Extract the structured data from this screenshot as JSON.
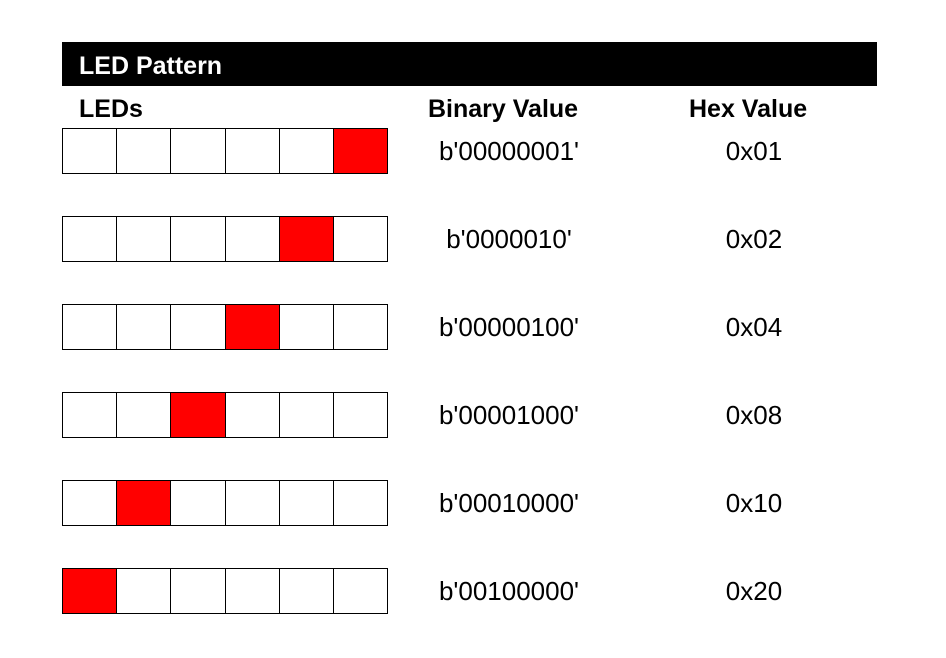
{
  "title": "LED Pattern",
  "headers": {
    "leds": "LEDs",
    "binary": "Binary Value",
    "hex": "Hex Value"
  },
  "colors": {
    "led_on": "#ff0000",
    "led_off": "#ffffff",
    "banner": "#000000"
  },
  "led_count": 6,
  "rows": [
    {
      "lit_index": 5,
      "binary": "b'00000001'",
      "hex": "0x01"
    },
    {
      "lit_index": 4,
      "binary": "b'0000010'",
      "hex": "0x02"
    },
    {
      "lit_index": 3,
      "binary": "b'00000100'",
      "hex": "0x04"
    },
    {
      "lit_index": 2,
      "binary": "b'00001000'",
      "hex": "0x08"
    },
    {
      "lit_index": 1,
      "binary": "b'00010000'",
      "hex": "0x10"
    },
    {
      "lit_index": 0,
      "binary": "b'00100000'",
      "hex": "0x20"
    }
  ]
}
